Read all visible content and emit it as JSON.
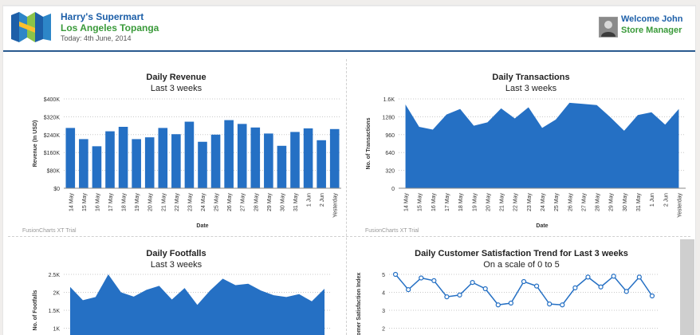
{
  "header": {
    "store_name": "Harry's Supermart",
    "store_location": "Los Angeles Topanga",
    "date": "Today: 4th June, 2014",
    "welcome": "Welcome John",
    "role": "Store Manager"
  },
  "colors": {
    "brand_blue": "#1d5fa8",
    "brand_green": "#3a9a3a",
    "series": "#2570c4"
  },
  "chart_data": [
    {
      "type": "bar",
      "title": "Daily Revenue",
      "subtitle": "Last 3 weeks",
      "xlabel": "Date",
      "ylabel": "Revenue (In USD)",
      "ylim": [
        0,
        400000
      ],
      "yticks": [
        "$0",
        "$80K",
        "$160K",
        "$240K",
        "$320K",
        "$400K"
      ],
      "grid": true,
      "categories": [
        "14 May",
        "15 May",
        "16 May",
        "17 May",
        "18 May",
        "19 May",
        "20 May",
        "21 May",
        "22 May",
        "23 May",
        "24 May",
        "25 May",
        "26 May",
        "27 May",
        "28 May",
        "29 May",
        "30 May",
        "31 May",
        "1 Jun",
        "2 Jun",
        "Yesterday"
      ],
      "values": [
        270000,
        220000,
        188000,
        255000,
        275000,
        220000,
        228000,
        270000,
        242000,
        298000,
        208000,
        240000,
        305000,
        288000,
        272000,
        245000,
        190000,
        252000,
        268000,
        215000,
        265000
      ],
      "watermark": "FusionCharts XT Trial"
    },
    {
      "type": "area",
      "title": "Daily Transactions",
      "subtitle": "Last 3 weeks",
      "xlabel": "Date",
      "ylabel": "No. of Transactions",
      "ylim": [
        0,
        1600
      ],
      "yticks": [
        "0",
        "320",
        "640",
        "960",
        "1280",
        "1.6K"
      ],
      "grid": true,
      "categories": [
        "14 May",
        "15 May",
        "16 May",
        "17 May",
        "18 May",
        "19 May",
        "20 May",
        "21 May",
        "22 May",
        "23 May",
        "24 May",
        "25 May",
        "26 May",
        "27 May",
        "28 May",
        "29 May",
        "30 May",
        "31 May",
        "1 Jun",
        "2 Jun",
        "Yesterday"
      ],
      "values": [
        1500,
        1100,
        1050,
        1320,
        1420,
        1120,
        1180,
        1430,
        1250,
        1450,
        1080,
        1230,
        1530,
        1510,
        1490,
        1270,
        1030,
        1310,
        1360,
        1140,
        1420
      ],
      "watermark": "FusionCharts XT Trial"
    },
    {
      "type": "area",
      "title": "Daily Footfalls",
      "subtitle": "Last 3 weeks",
      "xlabel": "",
      "ylabel": "No. of Footfalls",
      "ylim": [
        0,
        2500
      ],
      "yticks": [
        "1K",
        "1.5K",
        "2K",
        "2.5K"
      ],
      "grid": true,
      "values": [
        2150,
        1780,
        1870,
        2500,
        2000,
        1880,
        2070,
        2180,
        1800,
        2120,
        1650,
        2050,
        2380,
        2200,
        2240,
        2050,
        1920,
        1870,
        1950,
        1750,
        2100
      ]
    },
    {
      "type": "line",
      "title": "Daily Customer Satisfaction Trend for Last 3 weeks",
      "subtitle": "On a scale of 0 to 5",
      "xlabel": "",
      "ylabel": "Customer Satisfaction Index",
      "ylim": [
        0,
        5
      ],
      "yticks": [
        "2",
        "3",
        "4",
        "5"
      ],
      "grid": true,
      "values": [
        5.0,
        4.15,
        4.8,
        4.65,
        3.75,
        3.85,
        4.55,
        4.2,
        3.3,
        3.4,
        4.6,
        4.35,
        3.35,
        3.3,
        4.25,
        4.85,
        4.3,
        4.9,
        4.05,
        4.85,
        3.8
      ]
    }
  ]
}
